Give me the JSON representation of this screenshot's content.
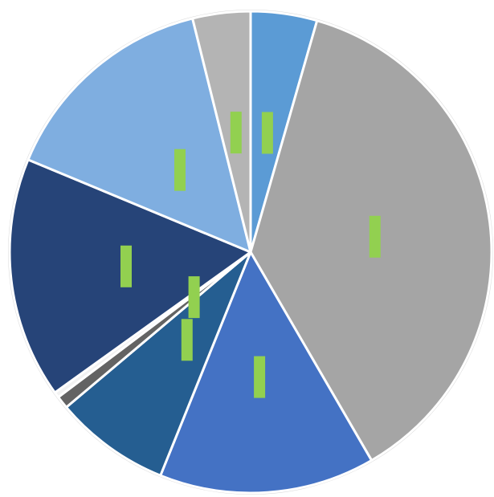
{
  "chart_data": {
    "type": "pie",
    "title": "",
    "legend": "none",
    "start_angle_deg": 0,
    "direction": "clockwise",
    "slices": [
      {
        "value": 4.7,
        "color": "#5B9BD5"
      },
      {
        "value": 39.3,
        "color": "#A5A5A5"
      },
      {
        "value": 15.3,
        "color": "#4472C4"
      },
      {
        "value": 8.2,
        "color": "#255E91"
      },
      {
        "value": 0.9,
        "color": "#636363"
      },
      {
        "value": 0.4,
        "color": "#F2F2F2"
      },
      {
        "value": 17.1,
        "color": "#264478"
      },
      {
        "value": 15.7,
        "color": "#7FAEE0"
      },
      {
        "value": 4.1,
        "color": "#B4B4B4"
      }
    ],
    "data_labels": [
      {
        "text": "",
        "color": "#92D050"
      },
      {
        "text": "",
        "color": "#92D050"
      },
      {
        "text": "",
        "color": "#92D050"
      },
      {
        "text": "",
        "color": "#92D050"
      },
      {
        "text": "",
        "color": "#92D050"
      },
      {
        "text": "",
        "color": "#92D050"
      },
      {
        "text": "",
        "color": "#92D050"
      },
      {
        "text": "",
        "color": "#92D050"
      }
    ],
    "outline_color": "#D9D9D9",
    "separator_color": "#FFFFFF"
  }
}
